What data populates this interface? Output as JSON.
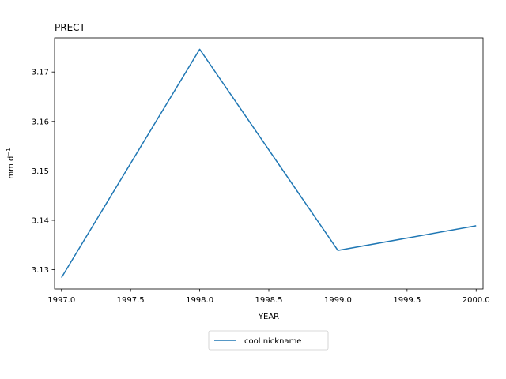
{
  "chart_data": {
    "type": "line",
    "title": "PRECT",
    "xlabel": "YEAR",
    "ylabel": "mm d",
    "ylabel_superscript": "−1",
    "xlim": [
      1996.95,
      2000.05
    ],
    "ylim": [
      3.1261,
      3.1769
    ],
    "x_ticks": [
      1997.0,
      1997.5,
      1998.0,
      1998.5,
      1999.0,
      1999.5,
      2000.0
    ],
    "x_tick_labels": [
      "1997.0",
      "1997.5",
      "1998.0",
      "1998.5",
      "1999.0",
      "1999.5",
      "2000.0"
    ],
    "y_ticks": [
      3.13,
      3.14,
      3.15,
      3.16,
      3.17
    ],
    "y_tick_labels": [
      "3.13",
      "3.14",
      "3.15",
      "3.16",
      "3.17"
    ],
    "grid": false,
    "legend_position": "bottom-center (below axes)",
    "series": [
      {
        "name": "cool nickname",
        "color": "#1f77b4",
        "x": [
          1997,
          1998,
          1999,
          2000
        ],
        "y": [
          3.1284,
          3.1746,
          3.1339,
          3.1389
        ]
      }
    ]
  }
}
